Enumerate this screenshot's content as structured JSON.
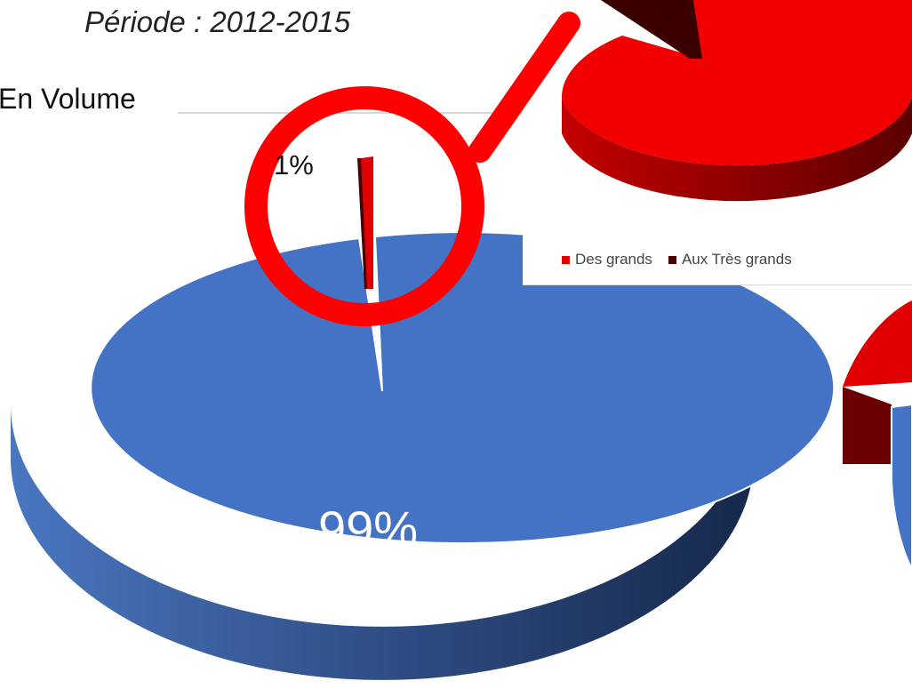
{
  "header": {
    "periode": "Période : 2012-2015",
    "section": "En Volume"
  },
  "chart_data": [
    {
      "type": "pie",
      "title": "",
      "slices": [
        {
          "value": 99,
          "label": "99%",
          "color": "#4472c4"
        },
        {
          "value": 1,
          "label": "1%",
          "color": "#e00000"
        }
      ]
    },
    {
      "type": "pie",
      "title": "",
      "legend": [
        "Des grands",
        "Aux Très grands"
      ],
      "legend_position": "bottom",
      "series": [
        {
          "name": "Des grands",
          "color": "#e00000"
        },
        {
          "name": "Aux Très grands",
          "color": "#4a0000"
        }
      ]
    }
  ],
  "legend": {
    "item1": "Des grands",
    "item2": "Aux Très grands",
    "color1": "#e00000",
    "color2": "#4a0000"
  },
  "magnifier": {
    "icon": "magnifier-icon",
    "color": "#ff0000"
  }
}
